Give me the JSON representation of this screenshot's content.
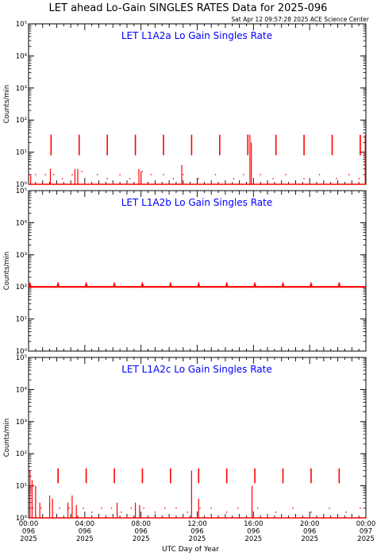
{
  "title": "LET ahead Lo-Gain SINGLES RATES Data for 2025-096",
  "timestamp": "Sat Apr 12 09:57:28 2025 ACE Science Center",
  "xlabel": "UTC Day of Year",
  "colors": {
    "data": "#ff0000",
    "panel_title": "#0000ff",
    "axes": "#000000"
  },
  "chart_data": [
    {
      "type": "line",
      "title": "LET L1A2a Lo Gain Singles Rate",
      "ylabel": "Counts/min",
      "yscale": "log",
      "ylim": [
        1,
        100000
      ],
      "ytick_labels": [
        "10⁰",
        "10¹",
        "10²",
        "10³",
        "10⁴",
        "10⁵"
      ],
      "xlim": [
        0,
        24
      ],
      "baseline": 1,
      "periodic_spikes": {
        "start_hour": 1.6,
        "period_hours": 2.0,
        "count": 12,
        "peak": 35,
        "low": 8
      },
      "scatter_points": [
        {
          "x": 0.5,
          "y": 2
        },
        {
          "x": 1.2,
          "y": 2
        },
        {
          "x": 1.8,
          "y": 2
        },
        {
          "x": 2.4,
          "y": 1.5
        },
        {
          "x": 3.1,
          "y": 2
        },
        {
          "x": 3.8,
          "y": 2.5
        },
        {
          "x": 4.9,
          "y": 2
        },
        {
          "x": 5.6,
          "y": 1.5
        },
        {
          "x": 6.5,
          "y": 2
        },
        {
          "x": 7.2,
          "y": 1.5
        },
        {
          "x": 8.1,
          "y": 2.5
        },
        {
          "x": 8.7,
          "y": 2
        },
        {
          "x": 9.6,
          "y": 2
        },
        {
          "x": 10.3,
          "y": 1.5
        },
        {
          "x": 11.0,
          "y": 2
        },
        {
          "x": 12.1,
          "y": 1.5
        },
        {
          "x": 13.3,
          "y": 2
        },
        {
          "x": 14.6,
          "y": 1.5
        },
        {
          "x": 15.3,
          "y": 2
        },
        {
          "x": 16.5,
          "y": 2
        },
        {
          "x": 17.4,
          "y": 1.5
        },
        {
          "x": 18.3,
          "y": 2
        },
        {
          "x": 19.6,
          "y": 1.5
        },
        {
          "x": 20.7,
          "y": 2
        },
        {
          "x": 21.9,
          "y": 1.5
        },
        {
          "x": 22.8,
          "y": 2
        },
        {
          "x": 23.5,
          "y": 1.5
        }
      ],
      "extra_spikes": [
        {
          "x": 0.15,
          "y": 2
        },
        {
          "x": 1.55,
          "y": 3
        },
        {
          "x": 3.3,
          "y": 3
        },
        {
          "x": 3.5,
          "y": 3
        },
        {
          "x": 7.85,
          "y": 3
        },
        {
          "x": 8.0,
          "y": 2.5
        },
        {
          "x": 10.9,
          "y": 4
        },
        {
          "x": 15.75,
          "y": 35
        },
        {
          "x": 15.85,
          "y": 20
        },
        {
          "x": 23.95,
          "y": 35
        }
      ]
    },
    {
      "type": "line",
      "title": "LET L1A2b Lo Gain Singles Rate",
      "ylabel": "Counts/min",
      "yscale": "log",
      "ylim": [
        1,
        100000
      ],
      "ytick_labels": [
        "10⁰",
        "10¹",
        "10²",
        "10³",
        "10⁴",
        "10⁵"
      ],
      "xlim": [
        0,
        24
      ],
      "baseline": 100,
      "periodic_spikes": {
        "start_hour": 0.1,
        "period_hours": 2.0,
        "count": 12,
        "peak": 120,
        "low": 100
      },
      "scatter_points": [],
      "extra_spikes": []
    },
    {
      "type": "line",
      "title": "LET L1A2c Lo Gain Singles Rate",
      "ylabel": "Counts/min",
      "yscale": "log",
      "ylim": [
        1,
        100000
      ],
      "ytick_labels": [
        "10⁰",
        "10¹",
        "10²",
        "10³",
        "10⁴",
        "10⁵"
      ],
      "xlim": [
        0,
        24
      ],
      "baseline": 1,
      "periodic_spikes": {
        "start_hour": 2.1,
        "period_hours": 2.0,
        "count": 11,
        "peak": 35,
        "low": 12
      },
      "scatter_points": [
        {
          "x": 0.3,
          "y": 2
        },
        {
          "x": 0.9,
          "y": 2
        },
        {
          "x": 1.5,
          "y": 2.5
        },
        {
          "x": 2.2,
          "y": 2
        },
        {
          "x": 2.9,
          "y": 2
        },
        {
          "x": 3.9,
          "y": 2
        },
        {
          "x": 4.5,
          "y": 1.5
        },
        {
          "x": 5.2,
          "y": 2
        },
        {
          "x": 5.9,
          "y": 2
        },
        {
          "x": 6.6,
          "y": 1.5
        },
        {
          "x": 7.3,
          "y": 2
        },
        {
          "x": 8.2,
          "y": 2
        },
        {
          "x": 9.0,
          "y": 1.5
        },
        {
          "x": 9.7,
          "y": 2
        },
        {
          "x": 10.5,
          "y": 2
        },
        {
          "x": 11.3,
          "y": 1.5
        },
        {
          "x": 12.2,
          "y": 2
        },
        {
          "x": 13.0,
          "y": 2
        },
        {
          "x": 14.1,
          "y": 1.5
        },
        {
          "x": 14.9,
          "y": 2
        },
        {
          "x": 16.3,
          "y": 2
        },
        {
          "x": 17.6,
          "y": 1.5
        },
        {
          "x": 18.8,
          "y": 2
        },
        {
          "x": 20.1,
          "y": 1.5
        },
        {
          "x": 21.4,
          "y": 2
        },
        {
          "x": 22.6,
          "y": 1.5
        },
        {
          "x": 23.6,
          "y": 2
        }
      ],
      "extra_spikes": [
        {
          "x": 0.1,
          "y": 30
        },
        {
          "x": 0.25,
          "y": 15
        },
        {
          "x": 0.5,
          "y": 10
        },
        {
          "x": 0.8,
          "y": 3
        },
        {
          "x": 1.5,
          "y": 5
        },
        {
          "x": 1.7,
          "y": 4
        },
        {
          "x": 2.8,
          "y": 3
        },
        {
          "x": 3.1,
          "y": 5
        },
        {
          "x": 3.4,
          "y": 2.5
        },
        {
          "x": 6.3,
          "y": 3
        },
        {
          "x": 7.6,
          "y": 3
        },
        {
          "x": 7.9,
          "y": 2.5
        },
        {
          "x": 11.6,
          "y": 30
        },
        {
          "x": 12.1,
          "y": 4
        },
        {
          "x": 15.9,
          "y": 10
        }
      ]
    }
  ],
  "x_ticks": [
    {
      "hour": 0,
      "l1": "00:00",
      "l2": "096",
      "l3": "2025"
    },
    {
      "hour": 4,
      "l1": "04:00",
      "l2": "096",
      "l3": "2025"
    },
    {
      "hour": 8,
      "l1": "08:00",
      "l2": "096",
      "l3": "2025"
    },
    {
      "hour": 12,
      "l1": "12:00",
      "l2": "096",
      "l3": "2025"
    },
    {
      "hour": 16,
      "l1": "16:00",
      "l2": "096",
      "l3": "2025"
    },
    {
      "hour": 20,
      "l1": "20:00",
      "l2": "096",
      "l3": "2025"
    },
    {
      "hour": 24,
      "l1": "00:00",
      "l2": "097",
      "l3": "2025"
    }
  ]
}
